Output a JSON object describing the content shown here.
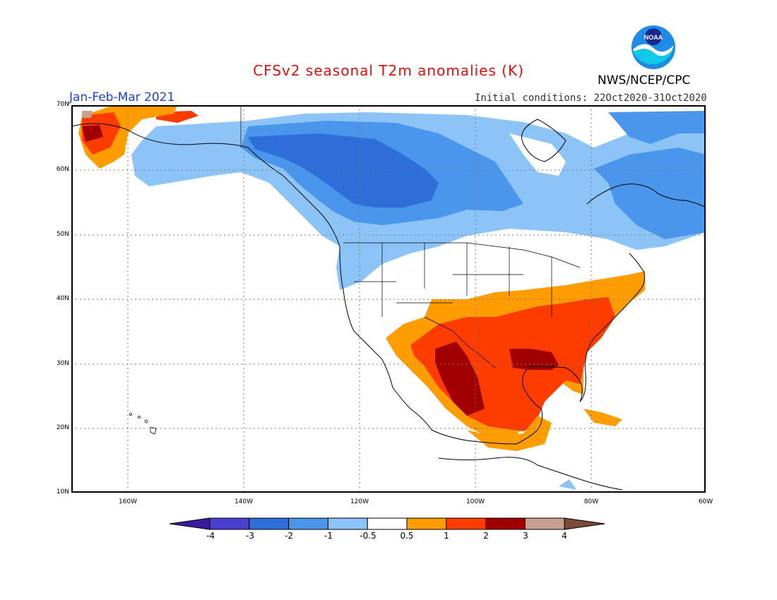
{
  "title": "CFSv2 seasonal T2m anomalies (K)",
  "period": "Jan-Feb-Mar 2021",
  "initial_conditions": "Initial conditions: 22Oct2020-31Oct2020",
  "agency": "NWS/NCEP/CPC",
  "logo_text": "NOAA",
  "lat_labels": [
    "70N",
    "60N",
    "50N",
    "40N",
    "30N",
    "20N",
    "10N"
  ],
  "lon_labels": [
    "160W",
    "140W",
    "120W",
    "100W",
    "80W",
    "60W"
  ],
  "colorbar": {
    "labels": [
      "-4",
      "-3",
      "-2",
      "-1",
      "-0.5",
      "0.5",
      "1",
      "2",
      "3",
      "4"
    ],
    "colors": [
      "#3a1aa0",
      "#4a40d0",
      "#2e6ed8",
      "#4a96ec",
      "#8cc4f8",
      "#ffffff",
      "#ff9d00",
      "#ff3c00",
      "#a00000",
      "#c8a090",
      "#7a4a3a"
    ]
  }
}
